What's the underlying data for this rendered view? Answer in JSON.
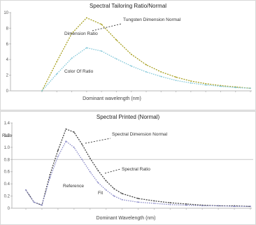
{
  "chart_data": [
    {
      "type": "line",
      "title": "Spectral Tailoring Ratio/Normal",
      "xlabel": "Dominant wavelength (nm)",
      "ylabel": "",
      "y_ticks": [
        "10",
        "8",
        "6",
        "4",
        "2",
        "0"
      ],
      "x": [
        0,
        1,
        2,
        3,
        4,
        5,
        6,
        7,
        8,
        9,
        10,
        11,
        12,
        13,
        14
      ],
      "ylim": [
        0,
        12
      ],
      "grid": false,
      "series": [
        {
          "name": "Tungsten Dimension Normal",
          "color": "#a8a020",
          "values": [
            0,
            4.5,
            8.8,
            11.2,
            10.2,
            7.8,
            5.6,
            4.0,
            2.9,
            2.1,
            1.5,
            1.1,
            0.8,
            0.6,
            0.4
          ]
        },
        {
          "name": "Color Of Ratio",
          "color": "#7ec6d8",
          "values": [
            0,
            2.6,
            5.0,
            6.6,
            6.1,
            4.9,
            3.8,
            2.9,
            2.2,
            1.6,
            1.2,
            0.9,
            0.7,
            0.5,
            0.4
          ]
        }
      ],
      "annotations": [
        "Tungsten Dimension Normal",
        "Dimension Ratio",
        "Color Of Ratio"
      ]
    },
    {
      "type": "line",
      "title": "Spectral Printed (Normal)",
      "xlabel": "Dominant Wavelength (nm)",
      "ylabel": "Ratio",
      "y_ticks": [
        "1.4",
        "1.2",
        "1.0",
        "0.8",
        "0.6",
        "0.4",
        "0.2",
        "0"
      ],
      "x": [
        0,
        0.5,
        1,
        1.5,
        2,
        2.5,
        3,
        3.5,
        4,
        4.5,
        5,
        5.5,
        6,
        7,
        8,
        9,
        10,
        11,
        12,
        13,
        14
      ],
      "ylim": [
        0,
        1.4
      ],
      "reference_y": 0.8,
      "grid": false,
      "series": [
        {
          "name": "Spectral Dimension Normal",
          "color": "#444444",
          "values": [
            0.3,
            0.1,
            0.05,
            0.55,
            0.95,
            1.3,
            1.25,
            1.05,
            0.82,
            0.62,
            0.45,
            0.32,
            0.24,
            0.16,
            0.12,
            0.09,
            0.07,
            0.05,
            0.04,
            0.04,
            0.03
          ]
        },
        {
          "name": "Spectral Ratio",
          "color": "#8a8ac8",
          "values": [
            0.3,
            0.1,
            0.05,
            0.5,
            0.85,
            1.1,
            1.0,
            0.8,
            0.6,
            0.42,
            0.3,
            0.2,
            0.14,
            0.1,
            0.08,
            0.06,
            0.05,
            0.04,
            0.04,
            0.03,
            0.03
          ]
        }
      ],
      "annotations": [
        "Spectral Dimension Normal",
        "Spectral Ratio",
        "Reference",
        "Fit"
      ]
    }
  ]
}
